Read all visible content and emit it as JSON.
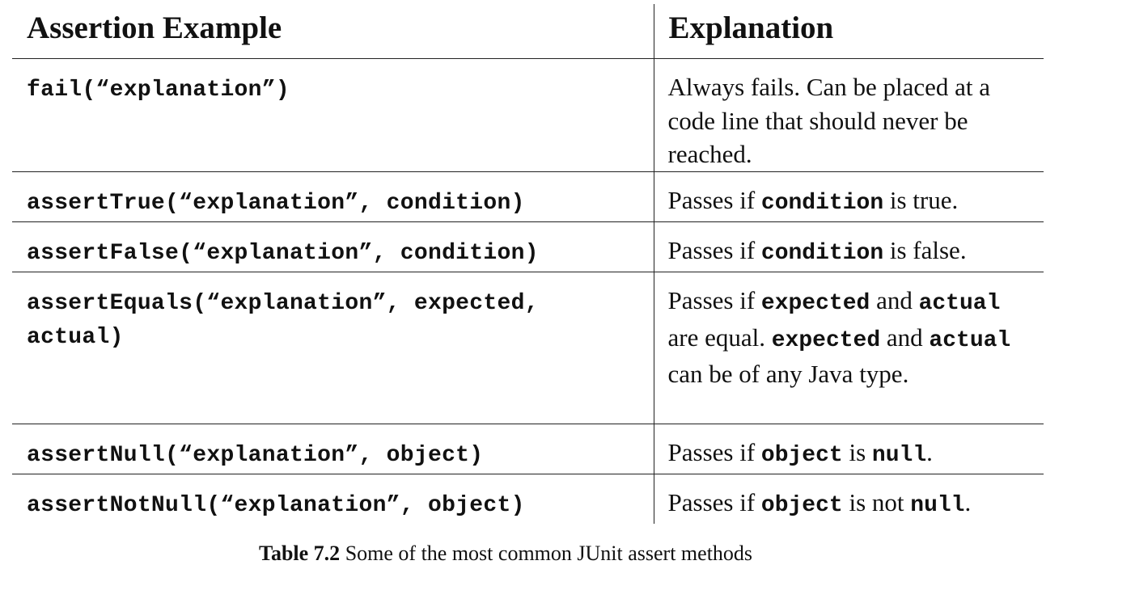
{
  "table": {
    "headers": [
      "Assertion Example",
      "Explanation"
    ],
    "rows": [
      {
        "code": "fail(“explanation”)",
        "explanation": [
          {
            "t": "Always fails. Can be placed at a code line that should never be reached.",
            "mono": false
          }
        ]
      },
      {
        "code": "assertTrue(“explanation”, condition)",
        "explanation": [
          {
            "t": "Passes if ",
            "mono": false
          },
          {
            "t": "condition",
            "mono": true
          },
          {
            "t": " is true.",
            "mono": false
          }
        ]
      },
      {
        "code": "assertFalse(“explanation”, condition)",
        "explanation": [
          {
            "t": "Passes if ",
            "mono": false
          },
          {
            "t": "condition",
            "mono": true
          },
          {
            "t": " is false.",
            "mono": false
          }
        ]
      },
      {
        "code": "assertEquals(“explanation”, expected, actual)",
        "explanation": [
          {
            "t": "Passes if ",
            "mono": false
          },
          {
            "t": "expected",
            "mono": true
          },
          {
            "t": " and ",
            "mono": false
          },
          {
            "t": "actual",
            "mono": true
          },
          {
            "t": " are equal. ",
            "mono": false
          },
          {
            "t": "expected",
            "mono": true
          },
          {
            "t": " and ",
            "mono": false
          },
          {
            "t": "actual",
            "mono": true
          },
          {
            "t": " can be of any Java type.",
            "mono": false
          }
        ]
      },
      {
        "code": "assertNull(“explanation”, object)",
        "explanation": [
          {
            "t": "Passes if ",
            "mono": false
          },
          {
            "t": "object",
            "mono": true
          },
          {
            "t": " is ",
            "mono": false
          },
          {
            "t": "null",
            "mono": true
          },
          {
            "t": ".",
            "mono": false
          }
        ]
      },
      {
        "code": "assertNotNull(“explanation”, object)",
        "explanation": [
          {
            "t": "Passes if ",
            "mono": false
          },
          {
            "t": "object",
            "mono": true
          },
          {
            "t": " is not ",
            "mono": false
          },
          {
            "t": "null",
            "mono": true
          },
          {
            "t": ".",
            "mono": false
          }
        ]
      }
    ]
  },
  "caption": {
    "label": "Table 7.2",
    "text": " Some of the most common JUnit assert methods"
  }
}
